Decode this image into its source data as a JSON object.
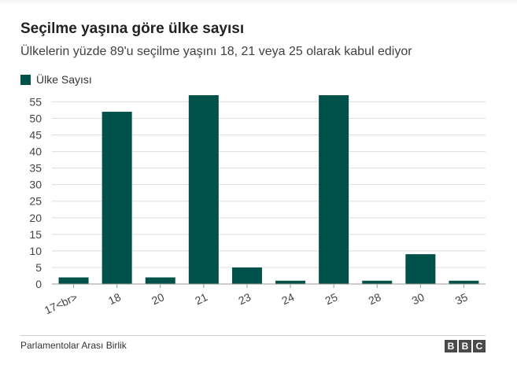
{
  "header": {
    "title": "Seçilme yaşına göre ülke sayısı",
    "subtitle": "Ülkelerin yüzde 89'u seçilme yaşını 18, 21 veya 25 olarak kabul ediyor"
  },
  "footer": {
    "source": "Parlamentolar Arası Birlik",
    "logo_letters": [
      "B",
      "B",
      "C"
    ]
  },
  "colors": {
    "bar": "#00514a",
    "grid": "#dddddd",
    "axis": "#999999"
  },
  "chart_data": {
    "type": "bar",
    "title": "Seçilme yaşına göre ülke sayısı",
    "subtitle": "Ülkelerin yüzde 89'u seçilme yaşını 18, 21 veya 25 olarak kabul ediyor",
    "categories": [
      "17<br>",
      "18",
      "20",
      "21",
      "23",
      "24",
      "25",
      "28",
      "30",
      "35"
    ],
    "series": [
      {
        "name": "Ülke Sayısı",
        "values": [
          2,
          52,
          2,
          57,
          5,
          1,
          57,
          1,
          9,
          1
        ]
      }
    ],
    "yticks": [
      0,
      5,
      10,
      15,
      20,
      25,
      30,
      35,
      40,
      45,
      50,
      55
    ],
    "ylim": [
      0,
      57
    ],
    "grid": true,
    "legend": "top-left"
  }
}
